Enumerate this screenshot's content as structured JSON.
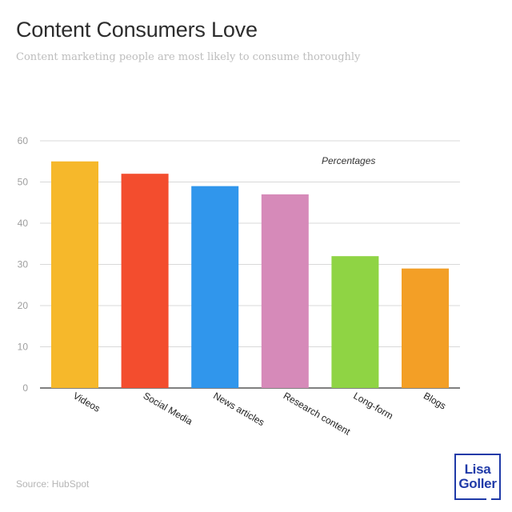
{
  "header": {
    "title": "Content Consumers Love",
    "subtitle": "Content marketing people are most likely to consume thoroughly"
  },
  "footer": {
    "source": "Source: HubSpot"
  },
  "logo": {
    "line1": "Lisa",
    "line2": "Goller",
    "color": "#1f3aa8"
  },
  "chart_data": {
    "type": "bar",
    "title": "Content Consumers Love",
    "subtitle": "Content marketing people are most likely to consume thoroughly",
    "xlabel": "",
    "ylabel": "",
    "annotation": "Percentages",
    "categories": [
      "Videos",
      "Social Media",
      "News articles",
      "Research content",
      "Long-form",
      "Blogs"
    ],
    "values": [
      55,
      52,
      49,
      47,
      32,
      29
    ],
    "colors": [
      "#f6b82b",
      "#f34d2e",
      "#3096ec",
      "#d68ab9",
      "#8fd444",
      "#f39f26"
    ],
    "ylim": [
      0,
      60
    ],
    "yticks": [
      0,
      10,
      20,
      30,
      40,
      50,
      60
    ],
    "grid": true,
    "legend": "none"
  }
}
